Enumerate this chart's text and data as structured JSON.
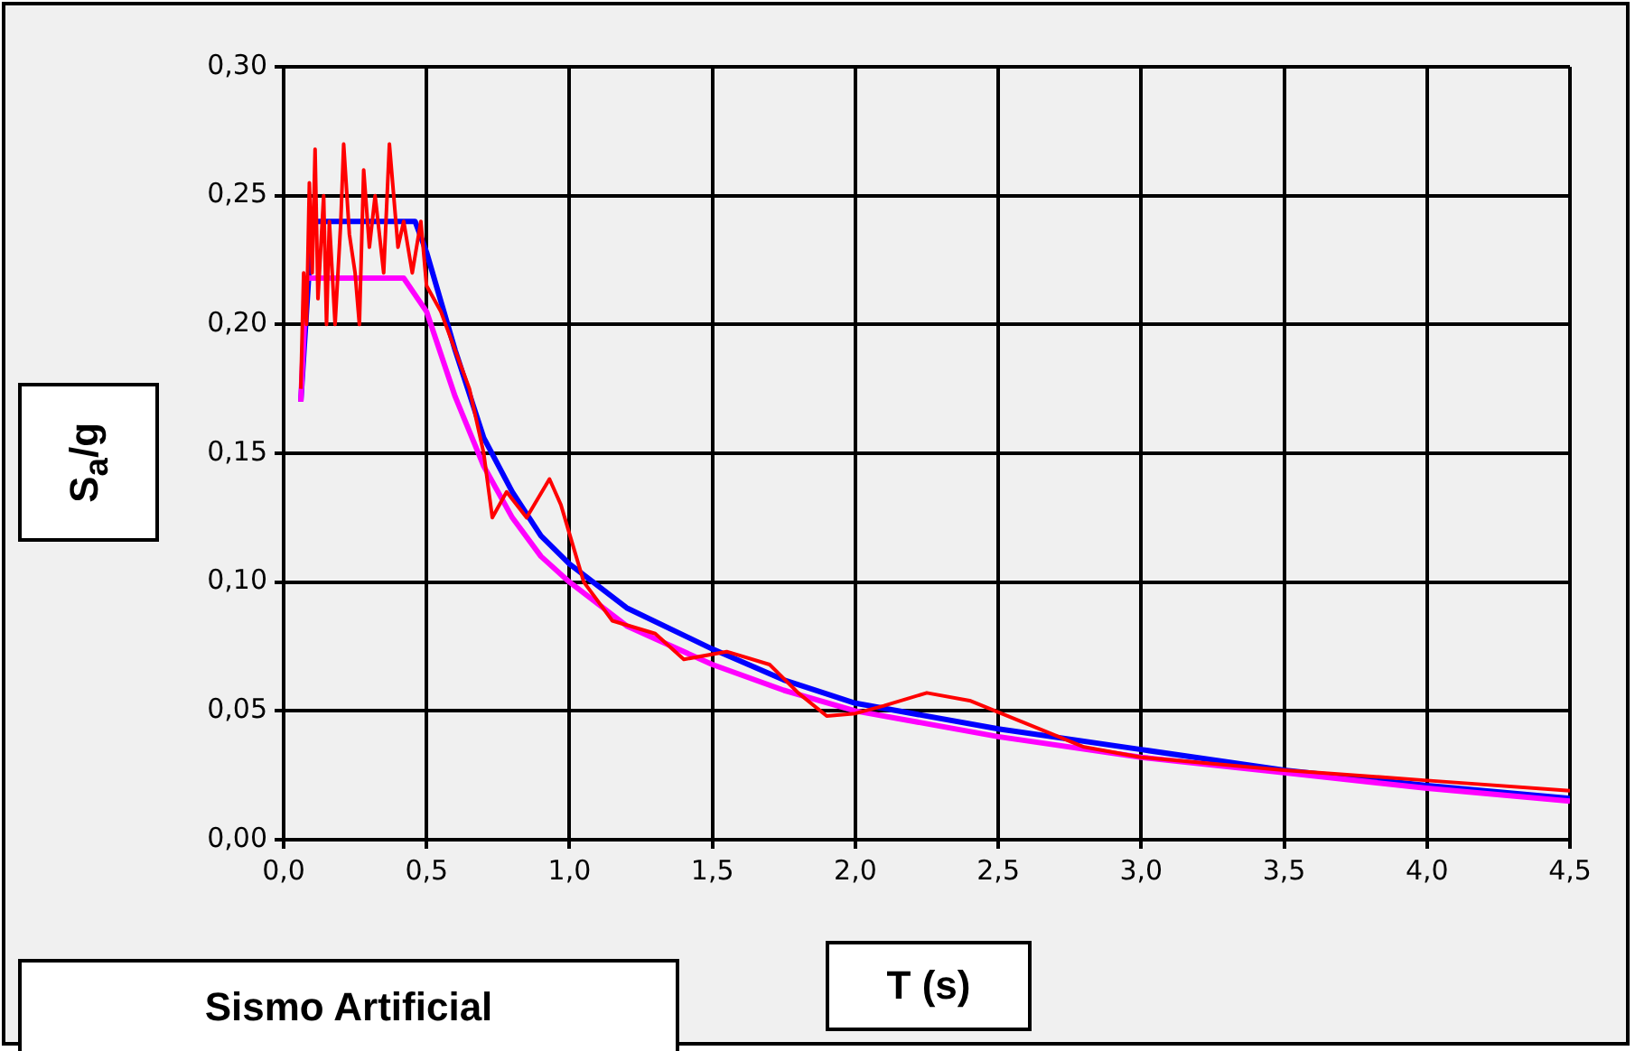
{
  "chart_data": {
    "type": "line",
    "xlabel": "T (s)",
    "ylabel": "S$_{a}$/g",
    "annotations": [
      "Sismo Artificial"
    ],
    "xlim": [
      0,
      4.5
    ],
    "xticks": [
      {
        "value": 0,
        "label": "0,0"
      },
      {
        "value": 0.5,
        "label": "0,5"
      },
      {
        "value": 1,
        "label": "1,0"
      },
      {
        "value": 1.5,
        "label": "1,5"
      },
      {
        "value": 2,
        "label": "2,0"
      },
      {
        "value": 2.5,
        "label": "2,5"
      },
      {
        "value": 3,
        "label": "3,0"
      },
      {
        "value": 3.5,
        "label": "3,5"
      },
      {
        "value": 4,
        "label": "4,0"
      },
      {
        "value": 4.5,
        "label": "4,5"
      }
    ],
    "ylim": [
      0,
      0.3
    ],
    "yticks": [
      {
        "value": 0,
        "label": "0,00"
      },
      {
        "value": 0.05,
        "label": "0,05"
      },
      {
        "value": 0.1,
        "label": "0,10"
      },
      {
        "value": 0.15,
        "label": "0,15"
      },
      {
        "value": 0.2,
        "label": "0,20"
      },
      {
        "value": 0.25,
        "label": "0,25"
      },
      {
        "value": 0.3,
        "label": "0,30"
      }
    ],
    "grid": true,
    "legend": false,
    "marker": "none",
    "line_style": "solid",
    "series": [
      {
        "color": "#0000ff",
        "x": [
          0.06,
          0.1,
          0.2,
          0.3,
          0.46,
          0.5,
          0.6,
          0.7,
          0.8,
          0.9,
          1.0,
          1.2,
          1.5,
          1.75,
          2.0,
          2.5,
          3.0,
          3.5,
          4.0,
          4.5
        ],
        "values": [
          0.17,
          0.24,
          0.24,
          0.24,
          0.24,
          0.228,
          0.19,
          0.156,
          0.135,
          0.118,
          0.107,
          0.09,
          0.074,
          0.062,
          0.053,
          0.043,
          0.035,
          0.027,
          0.021,
          0.016
        ]
      },
      {
        "color": "#ff00ff",
        "x": [
          0.06,
          0.08,
          0.2,
          0.3,
          0.42,
          0.5,
          0.6,
          0.7,
          0.8,
          0.9,
          1.0,
          1.2,
          1.5,
          1.75,
          2.0,
          2.5,
          3.0,
          3.5,
          4.0,
          4.5
        ],
        "values": [
          0.17,
          0.218,
          0.218,
          0.218,
          0.218,
          0.205,
          0.172,
          0.145,
          0.125,
          0.11,
          0.1,
          0.083,
          0.068,
          0.058,
          0.05,
          0.04,
          0.032,
          0.026,
          0.02,
          0.015
        ]
      },
      {
        "color": "#ff0000",
        "x": [
          0.06,
          0.07,
          0.08,
          0.09,
          0.1,
          0.11,
          0.12,
          0.14,
          0.15,
          0.16,
          0.18,
          0.2,
          0.21,
          0.23,
          0.25,
          0.265,
          0.28,
          0.3,
          0.32,
          0.35,
          0.37,
          0.4,
          0.42,
          0.45,
          0.48,
          0.5,
          0.55,
          0.6,
          0.65,
          0.7,
          0.73,
          0.78,
          0.85,
          0.93,
          0.97,
          1.05,
          1.15,
          1.3,
          1.4,
          1.55,
          1.7,
          1.8,
          1.9,
          2.0,
          2.1,
          2.25,
          2.4,
          2.6,
          2.8,
          3.0,
          3.5,
          4.0,
          4.5
        ],
        "values": [
          0.175,
          0.22,
          0.2,
          0.255,
          0.22,
          0.268,
          0.21,
          0.25,
          0.2,
          0.24,
          0.2,
          0.24,
          0.27,
          0.235,
          0.22,
          0.2,
          0.26,
          0.23,
          0.25,
          0.22,
          0.27,
          0.23,
          0.24,
          0.22,
          0.24,
          0.215,
          0.205,
          0.19,
          0.175,
          0.15,
          0.125,
          0.135,
          0.125,
          0.14,
          0.13,
          0.1,
          0.085,
          0.08,
          0.07,
          0.073,
          0.068,
          0.057,
          0.048,
          0.049,
          0.052,
          0.057,
          0.054,
          0.045,
          0.036,
          0.032,
          0.027,
          0.023,
          0.019
        ]
      }
    ]
  }
}
